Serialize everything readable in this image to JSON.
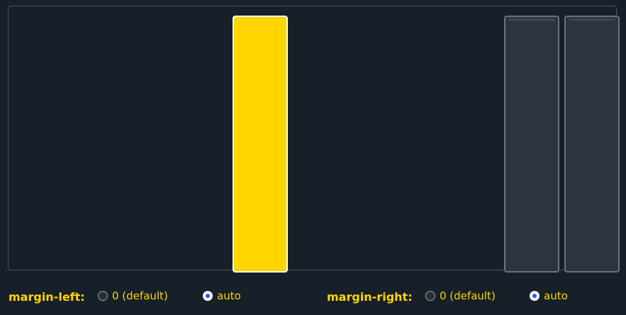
{
  "stage": {
    "items": [
      {
        "state": "active",
        "color": "#ffd500"
      },
      {
        "state": "inactive",
        "color": "#2d343d"
      },
      {
        "state": "inactive",
        "color": "#2d343d"
      }
    ]
  },
  "controls": {
    "margin_left": {
      "label": "margin-left:",
      "options": [
        {
          "label": "0 (default)",
          "checked": false
        },
        {
          "label": "auto",
          "checked": true
        }
      ]
    },
    "margin_right": {
      "label": "margin-right:",
      "options": [
        {
          "label": "0 (default)",
          "checked": false
        },
        {
          "label": "auto",
          "checked": true
        }
      ]
    }
  },
  "colors": {
    "background": "#171f28",
    "accent": "#ffd500",
    "radio_selected": "#1a5cff"
  }
}
